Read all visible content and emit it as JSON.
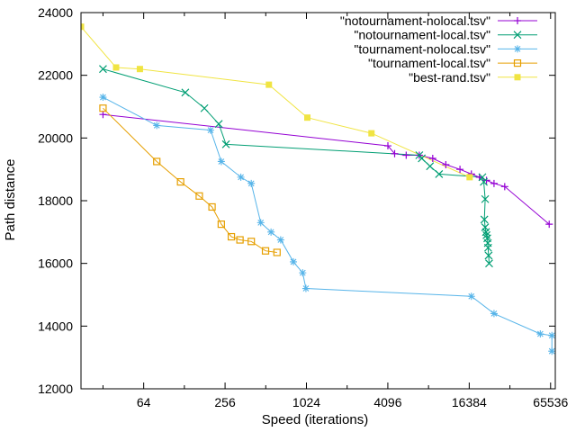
{
  "chart_data": {
    "type": "line",
    "xlabel": "Speed (iterations)",
    "ylabel": "Path distance",
    "xscale": "log2",
    "xlim": [
      22,
      71000
    ],
    "ylim": [
      12000,
      24000
    ],
    "xticks": [
      64,
      256,
      1024,
      4096,
      16384,
      65536
    ],
    "xtick_labels": [
      "64",
      "256",
      "1024",
      "4096",
      "16384",
      "65536"
    ],
    "yticks": [
      12000,
      14000,
      16000,
      18000,
      20000,
      22000,
      24000
    ],
    "ytick_labels": [
      "12000",
      "14000",
      "16000",
      "18000",
      "20000",
      "22000",
      "24000"
    ],
    "legend_position": "top-right",
    "series": [
      {
        "name": "\"notournament-nolocal.tsv\"",
        "color": "#9400d3",
        "marker": "plus",
        "x": [
          32,
          4100,
          4600,
          5600,
          7000,
          8800,
          11000,
          14000,
          17000,
          19500,
          22000,
          25000,
          30000,
          64000
        ],
        "y": [
          20750,
          19750,
          19500,
          19450,
          19450,
          19350,
          19150,
          19000,
          18850,
          18750,
          18650,
          18550,
          18450,
          17250
        ]
      },
      {
        "name": "\"notournament-local.tsv\"",
        "color": "#009e73",
        "marker": "x",
        "x": [
          32,
          130,
          180,
          230,
          260,
          7000,
          7300,
          8400,
          9800,
          20500,
          21000,
          21500,
          21200,
          21500,
          21800,
          22000,
          22300,
          22500,
          22600,
          22800,
          23000
        ],
        "y": [
          22200,
          21450,
          20950,
          20450,
          19800,
          19450,
          19350,
          19100,
          18850,
          18750,
          18600,
          18050,
          17400,
          17150,
          17000,
          16900,
          16800,
          16650,
          16500,
          16250,
          16000
        ],
        "smooth_tail": true
      },
      {
        "name": "\"tournament-nolocal.tsv\"",
        "color": "#56b4e9",
        "marker": "star",
        "x": [
          32,
          80,
          200,
          240,
          335,
          400,
          470,
          560,
          660,
          820,
          960,
          1015,
          17000,
          25000,
          55000,
          67000,
          67000
        ],
        "y": [
          21300,
          20400,
          20250,
          19250,
          18750,
          18550,
          17300,
          17000,
          16750,
          16050,
          15700,
          15200,
          14950,
          14400,
          13750,
          13700,
          13200
        ]
      },
      {
        "name": "\"tournament-local.tsv\"",
        "color": "#e69f00",
        "marker": "open-square",
        "x": [
          32,
          80,
          120,
          165,
          205,
          240,
          285,
          330,
          400,
          510,
          620
        ],
        "y": [
          20950,
          19250,
          18600,
          18150,
          17800,
          17250,
          16850,
          16750,
          16700,
          16400,
          16350
        ]
      },
      {
        "name": "\"best-rand.tsv\"",
        "color": "#f0e442",
        "marker": "filled-square",
        "x": [
          22,
          40,
          60,
          540,
          1040,
          3100,
          16500
        ],
        "y": [
          23550,
          22250,
          22200,
          21700,
          20650,
          20150,
          18750
        ]
      }
    ]
  }
}
